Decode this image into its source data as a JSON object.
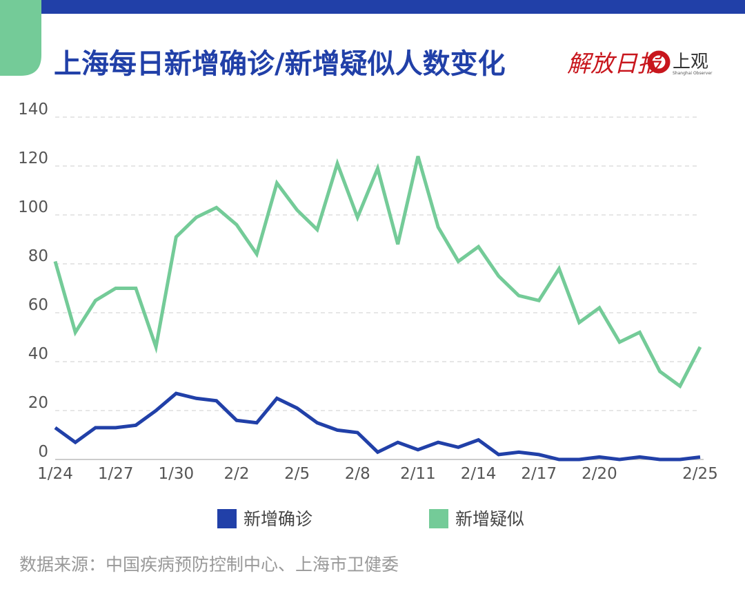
{
  "header": {
    "logo1": "解放日报",
    "logo2": "上观",
    "logo2_sub": "Shanghai Observer"
  },
  "chart_data": {
    "type": "line",
    "title": "上海每日新增确诊/新增疑似人数变化",
    "source": "数据来源：中国疾病预防控制中心、上海市卫健委",
    "categories": [
      "1/24",
      null,
      null,
      "1/27",
      null,
      null,
      "1/30",
      null,
      null,
      "2/2",
      null,
      null,
      "2/5",
      null,
      null,
      "2/8",
      null,
      null,
      "2/11",
      null,
      null,
      "2/14",
      null,
      null,
      "2/17",
      null,
      null,
      "2/20",
      null,
      null,
      null,
      null,
      "2/25"
    ],
    "series": [
      {
        "name": "新增确诊",
        "color": "#2140a8",
        "values": [
          13,
          7,
          13,
          13,
          14,
          20,
          27,
          25,
          24,
          16,
          15,
          25,
          21,
          15,
          12,
          11,
          3,
          7,
          4,
          7,
          5,
          8,
          2,
          3,
          2,
          0,
          0,
          1,
          0,
          1,
          0,
          0,
          1
        ]
      },
      {
        "name": "新增疑似",
        "color": "#74cb98",
        "values": [
          81,
          52,
          65,
          70,
          70,
          46,
          91,
          99,
          103,
          96,
          84,
          113,
          102,
          94,
          121,
          99,
          119,
          88,
          124,
          95,
          81,
          87,
          75,
          67,
          65,
          78,
          56,
          62,
          48,
          52,
          36,
          30,
          46
        ]
      }
    ],
    "ylim": [
      0,
      140
    ],
    "yticks": [
      0,
      20,
      40,
      60,
      80,
      100,
      120,
      140
    ],
    "grid": true
  }
}
